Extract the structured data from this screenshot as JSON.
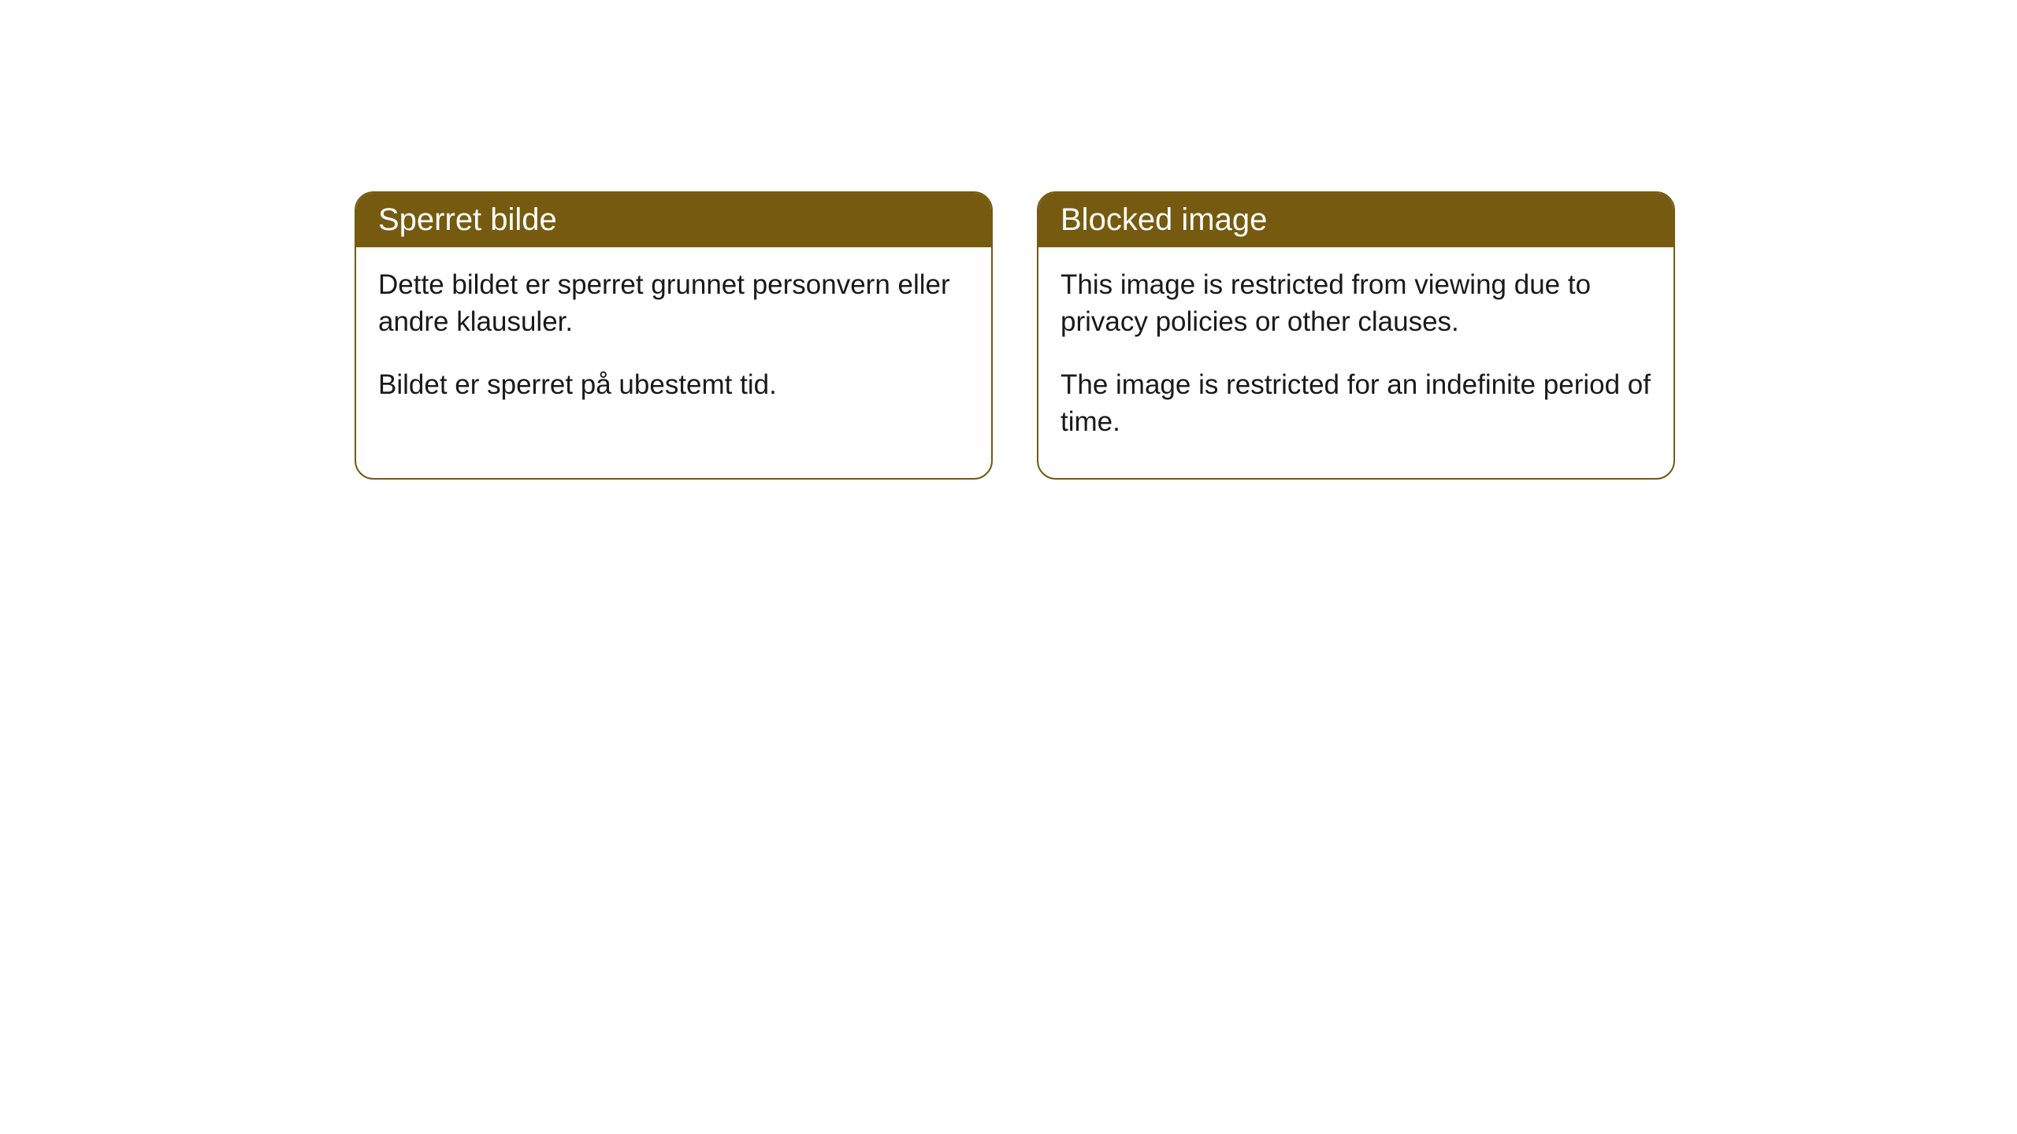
{
  "cards": [
    {
      "title": "Sperret bilde",
      "paragraph1": "Dette bildet er sperret grunnet personvern eller andre klausuler.",
      "paragraph2": "Bildet er sperret på ubestemt tid."
    },
    {
      "title": "Blocked image",
      "paragraph1": "This image is restricted from viewing due to privacy policies or other clauses.",
      "paragraph2": "The image is restricted for an indefinite period of time."
    }
  ],
  "colors": {
    "header_bg": "#755a10",
    "header_text": "#ffffff",
    "border": "#755a10",
    "body_text": "#1a1a1a",
    "page_bg": "#ffffff"
  }
}
